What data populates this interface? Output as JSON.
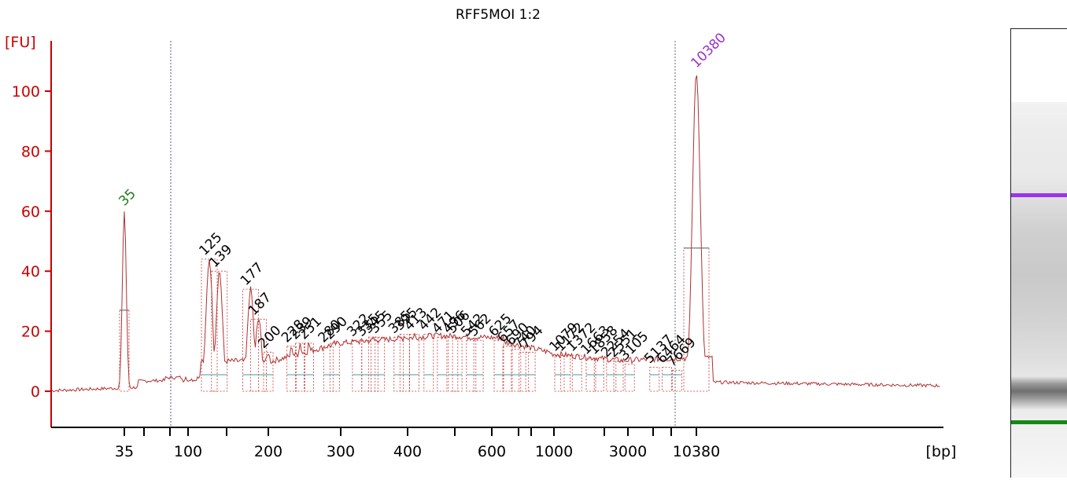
{
  "title": "RFF5MOI 1:2",
  "chart_data": {
    "type": "line",
    "title": "RFF5MOI 1:2",
    "ylabel": "[FU]",
    "xlabel": "[bp]",
    "ylim": [
      -10,
      115
    ],
    "yticks": [
      0,
      20,
      40,
      60,
      80,
      100
    ],
    "xticks": [
      "35",
      "100",
      "200",
      "300",
      "400",
      "600",
      "1000",
      "3000",
      "10380"
    ],
    "grid": false,
    "colors": {
      "axis": "#cc0000",
      "trace": "#b03030",
      "lower_marker": "#1a7a1a",
      "upper_marker": "#9933cc"
    },
    "markers": [
      {
        "label": "35",
        "x": 35,
        "peak": 60,
        "color": "#1a7a1a"
      },
      {
        "label": "10380",
        "x": 10380,
        "peak": 106,
        "color": "#9933cc"
      }
    ],
    "peaks": [
      {
        "label": "125",
        "x": 125,
        "y": 44
      },
      {
        "label": "139",
        "x": 139,
        "y": 40
      },
      {
        "label": "177",
        "x": 177,
        "y": 34
      },
      {
        "label": "187",
        "x": 187,
        "y": 24
      },
      {
        "label": "200",
        "x": 200,
        "y": 13
      },
      {
        "label": "228",
        "x": 228,
        "y": 15
      },
      {
        "label": "239",
        "x": 239,
        "y": 16
      },
      {
        "label": "251",
        "x": 251,
        "y": 16
      },
      {
        "label": "280",
        "x": 280,
        "y": 15
      },
      {
        "label": "290",
        "x": 290,
        "y": 16
      },
      {
        "label": "322",
        "x": 322,
        "y": 17
      },
      {
        "label": "335",
        "x": 335,
        "y": 17
      },
      {
        "label": "345",
        "x": 345,
        "y": 18
      },
      {
        "label": "355",
        "x": 355,
        "y": 18
      },
      {
        "label": "385",
        "x": 385,
        "y": 18
      },
      {
        "label": "395",
        "x": 395,
        "y": 19
      },
      {
        "label": "413",
        "x": 413,
        "y": 19
      },
      {
        "label": "442",
        "x": 442,
        "y": 19
      },
      {
        "label": "471",
        "x": 471,
        "y": 18
      },
      {
        "label": "496",
        "x": 496,
        "y": 18
      },
      {
        "label": "506",
        "x": 506,
        "y": 18
      },
      {
        "label": "542",
        "x": 542,
        "y": 17
      },
      {
        "label": "562",
        "x": 562,
        "y": 17
      },
      {
        "label": "625",
        "x": 625,
        "y": 17
      },
      {
        "label": "657",
        "x": 657,
        "y": 15
      },
      {
        "label": "690",
        "x": 690,
        "y": 14
      },
      {
        "label": "740",
        "x": 740,
        "y": 13
      },
      {
        "label": "794",
        "x": 794,
        "y": 13
      },
      {
        "label": "1079",
        "x": 1079,
        "y": 12
      },
      {
        "label": "1172",
        "x": 1172,
        "y": 12
      },
      {
        "label": "1372",
        "x": 1372,
        "y": 12
      },
      {
        "label": "1663",
        "x": 1663,
        "y": 11
      },
      {
        "label": "1858",
        "x": 1858,
        "y": 11
      },
      {
        "label": "2254",
        "x": 2254,
        "y": 10
      },
      {
        "label": "2551",
        "x": 2551,
        "y": 10
      },
      {
        "label": "3105",
        "x": 3105,
        "y": 9
      },
      {
        "label": "5137",
        "x": 5137,
        "y": 8
      },
      {
        "label": "6464",
        "x": 6464,
        "y": 8
      },
      {
        "label": "7669",
        "x": 7669,
        "y": 7
      }
    ]
  }
}
